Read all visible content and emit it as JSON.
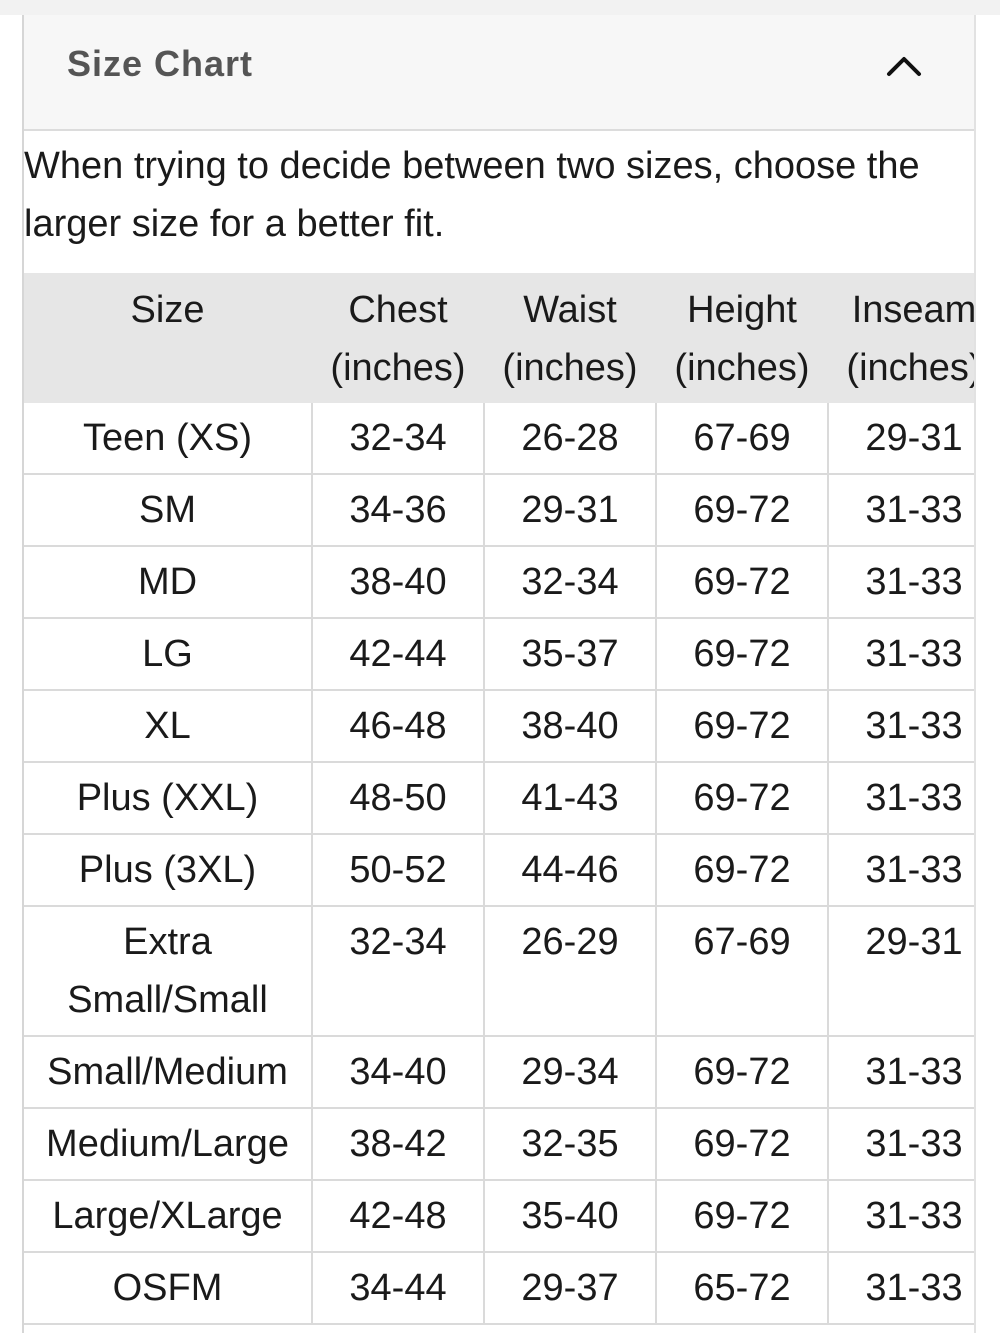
{
  "header": {
    "title": "Size Chart"
  },
  "intro": "When trying to decide between two sizes, choose the larger size for a better fit.",
  "table": {
    "columns": [
      "Size",
      "Chest (inches)",
      "Waist (inches)",
      "Height (inches)",
      "Inseam (inches)"
    ],
    "rows": [
      [
        "Teen (XS)",
        "32-34",
        "26-28",
        "67-69",
        "29-31"
      ],
      [
        "SM",
        "34-36",
        "29-31",
        "69-72",
        "31-33"
      ],
      [
        "MD",
        "38-40",
        "32-34",
        "69-72",
        "31-33"
      ],
      [
        "LG",
        "42-44",
        "35-37",
        "69-72",
        "31-33"
      ],
      [
        "XL",
        "46-48",
        "38-40",
        "69-72",
        "31-33"
      ],
      [
        "Plus (XXL)",
        "48-50",
        "41-43",
        "69-72",
        "31-33"
      ],
      [
        "Plus (3XL)",
        "50-52",
        "44-46",
        "69-72",
        "31-33"
      ],
      [
        "Extra Small/Small",
        "32-34",
        "26-29",
        "67-69",
        "29-31"
      ],
      [
        "Small/Medium",
        "34-40",
        "29-34",
        "69-72",
        "31-33"
      ],
      [
        "Medium/Large",
        "38-42",
        "32-35",
        "69-72",
        "31-33"
      ],
      [
        "Large/XLarge",
        "42-48",
        "35-40",
        "69-72",
        "31-33"
      ],
      [
        "OSFM",
        "34-44",
        "29-37",
        "65-72",
        "31-33"
      ]
    ]
  }
}
